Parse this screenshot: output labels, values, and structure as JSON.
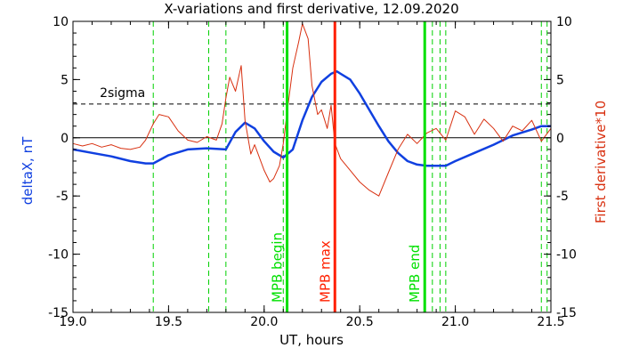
{
  "chart_data": {
    "type": "line",
    "title": "X-variations and first derivative, 12.09.2020",
    "xlabel": "UT, hours",
    "ylabel_left": "deltaX, nT",
    "ylabel_right": "First derivative*10",
    "xlim": [
      19.0,
      21.5
    ],
    "ylim": [
      -15,
      10
    ],
    "x_ticks": [
      "19.0",
      "19.5",
      "20.0",
      "20.5",
      "21.0",
      "21.5"
    ],
    "y_ticks_left": [
      "10",
      "5",
      "0",
      "-5",
      "-10",
      "-15"
    ],
    "y_ticks_right": [
      "10",
      "5",
      "0",
      "-5",
      "-10",
      "-15"
    ],
    "grid": false,
    "threshold": {
      "label": "2sigma",
      "value": 2.9
    },
    "zero_line": 0,
    "markers": [
      {
        "label": "MPB begin",
        "x": 20.12,
        "color": "#00e000"
      },
      {
        "label": "MPB max",
        "x": 20.37,
        "color": "#ff2000"
      },
      {
        "label": "MPB end",
        "x": 20.84,
        "color": "#00e000"
      }
    ],
    "dashed_markers": [
      19.42,
      19.71,
      19.8,
      20.1,
      20.84,
      20.88,
      20.92,
      20.95,
      21.45,
      21.48
    ],
    "series": [
      {
        "name": "deltaX, nT",
        "color": "#1040e0",
        "x": [
          19.0,
          19.1,
          19.2,
          19.3,
          19.38,
          19.42,
          19.5,
          19.6,
          19.7,
          19.8,
          19.85,
          19.9,
          19.95,
          20.0,
          20.05,
          20.1,
          20.15,
          20.2,
          20.25,
          20.3,
          20.35,
          20.38,
          20.45,
          20.5,
          20.55,
          20.6,
          20.65,
          20.7,
          20.75,
          20.8,
          20.85,
          20.9,
          20.95,
          21.0,
          21.1,
          21.2,
          21.3,
          21.4,
          21.45,
          21.5
        ],
        "values": [
          -1.0,
          -1.3,
          -1.6,
          -2.0,
          -2.2,
          -2.2,
          -1.5,
          -1.0,
          -0.9,
          -1.0,
          0.5,
          1.3,
          0.8,
          -0.3,
          -1.2,
          -1.7,
          -1.0,
          1.5,
          3.5,
          4.8,
          5.5,
          5.7,
          5.0,
          3.8,
          2.4,
          1.0,
          -0.3,
          -1.3,
          -2.0,
          -2.3,
          -2.4,
          -2.4,
          -2.4,
          -2.0,
          -1.3,
          -0.6,
          0.2,
          0.7,
          1.0,
          1.0
        ]
      },
      {
        "name": "First derivative*10",
        "color": "#d83010",
        "x": [
          19.0,
          19.05,
          19.1,
          19.15,
          19.2,
          19.25,
          19.3,
          19.35,
          19.38,
          19.42,
          19.45,
          19.5,
          19.55,
          19.6,
          19.65,
          19.7,
          19.75,
          19.78,
          19.8,
          19.82,
          19.85,
          19.88,
          19.9,
          19.93,
          19.95,
          20.0,
          20.03,
          20.05,
          20.08,
          20.1,
          20.12,
          20.15,
          20.18,
          20.2,
          20.23,
          20.25,
          20.28,
          20.3,
          20.33,
          20.35,
          20.37,
          20.4,
          20.45,
          20.5,
          20.55,
          20.6,
          20.65,
          20.7,
          20.75,
          20.8,
          20.85,
          20.9,
          20.95,
          21.0,
          21.05,
          21.1,
          21.15,
          21.2,
          21.25,
          21.3,
          21.35,
          21.4,
          21.45,
          21.5
        ],
        "values": [
          -0.5,
          -0.7,
          -0.5,
          -0.8,
          -0.6,
          -0.9,
          -1.0,
          -0.8,
          -0.2,
          1.2,
          2.0,
          1.8,
          0.6,
          -0.2,
          -0.4,
          0.1,
          -0.2,
          1.2,
          3.4,
          5.2,
          4.0,
          6.2,
          1.5,
          -1.4,
          -0.6,
          -2.8,
          -3.8,
          -3.5,
          -2.4,
          -0.5,
          2.2,
          6.0,
          8.2,
          9.8,
          8.5,
          4.5,
          2.0,
          2.4,
          0.8,
          2.8,
          -0.5,
          -1.8,
          -2.8,
          -3.8,
          -4.5,
          -5.0,
          -3.0,
          -1.0,
          0.3,
          -0.5,
          0.4,
          0.8,
          -0.2,
          2.3,
          1.8,
          0.3,
          1.6,
          0.8,
          -0.3,
          1.0,
          0.6,
          1.5,
          -0.3,
          0.8
        ]
      }
    ]
  }
}
